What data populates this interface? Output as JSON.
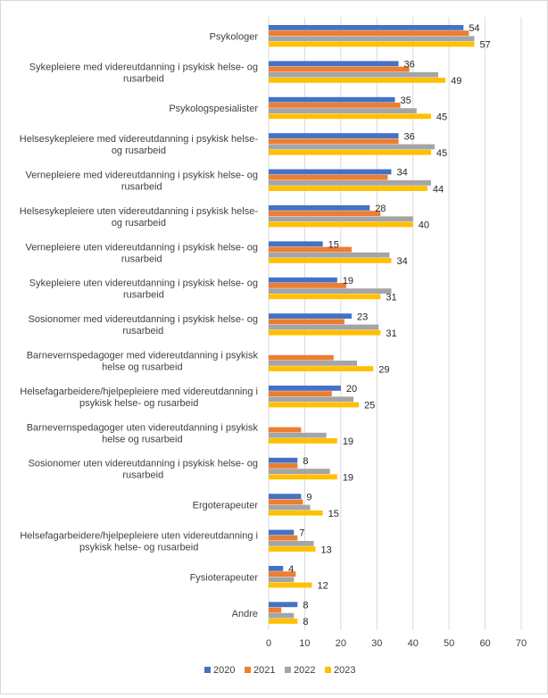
{
  "chart_data": {
    "type": "bar",
    "orientation": "horizontal",
    "title": "",
    "xlabel": "",
    "ylabel": "",
    "xlim": [
      0,
      70
    ],
    "x_ticks": [
      "0",
      "10",
      "20",
      "30",
      "40",
      "50",
      "60",
      "70"
    ],
    "grid": "vertical",
    "legend_position": "bottom",
    "categories": [
      [
        "Psykologer"
      ],
      [
        "Sykepleiere med videreutdanning i psykisk helse- og",
        "rusarbeid"
      ],
      [
        "Psykologspesialister"
      ],
      [
        "Helsesykepleiere med videreutdanning i psykisk helse-",
        "og rusarbeid"
      ],
      [
        "Vernepleiere med videreutdanning i psykisk helse- og",
        "rusarbeid"
      ],
      [
        "Helsesykepleiere uten videreutdanning i psykisk helse-",
        "og rusarbeid"
      ],
      [
        "Vernepleiere uten videreutdanning i psykisk helse- og",
        "rusarbeid"
      ],
      [
        "Sykepleiere uten videreutdanning i psykisk helse- og",
        "rusarbeid"
      ],
      [
        "Sosionomer med videreutdanning i psykisk helse- og",
        "rusarbeid"
      ],
      [
        "Barnevernspedagoger med videreutdanning i psykisk",
        "helse og rusarbeid"
      ],
      [
        "Helsefagarbeidere/hjelpepleiere med videreutdanning i",
        "psykisk helse- og rusarbeid"
      ],
      [
        "Barnevernspedagoger uten videreutdanning i psykisk",
        "helse og rusarbeid"
      ],
      [
        "Sosionomer uten videreutdanning i psykisk helse- og",
        "rusarbeid"
      ],
      [
        "Ergoterapeuter"
      ],
      [
        "Helsefagarbeidere/hjelpepleiere uten videreutdanning i",
        "psykisk helse- og rusarbeid"
      ],
      [
        "Fysioterapeuter"
      ],
      [
        "Andre"
      ]
    ],
    "series": [
      {
        "name": "2020",
        "color": "#4472C4",
        "values": [
          54,
          36,
          35,
          36,
          34,
          28,
          15,
          19,
          23,
          null,
          20,
          null,
          8,
          9,
          7,
          4,
          8
        ],
        "labels": [
          "54",
          "36",
          "35",
          "36",
          "34",
          "28",
          "15",
          "19",
          "23",
          "",
          "20",
          "",
          "8",
          "9",
          "7",
          "4",
          "8"
        ]
      },
      {
        "name": "2021",
        "color": "#ED7D31",
        "values": [
          55.5,
          39,
          36.5,
          36,
          33,
          31,
          23,
          21.5,
          21,
          18,
          17.5,
          9,
          8,
          9.5,
          8,
          7.5,
          3.5
        ],
        "labels": []
      },
      {
        "name": "2022",
        "color": "#A5A5A5",
        "values": [
          57,
          47,
          41,
          46,
          45,
          40,
          33.5,
          34,
          30.5,
          24.5,
          23.5,
          16,
          17,
          11.5,
          12.5,
          7,
          7
        ],
        "labels": []
      },
      {
        "name": "2023",
        "color": "#FFC000",
        "values": [
          57,
          49,
          45,
          45,
          44,
          40,
          34,
          31,
          31,
          29,
          25,
          19,
          19,
          15,
          13,
          12,
          8
        ],
        "labels": [
          "57",
          "49",
          "45",
          "45",
          "44",
          "40",
          "34",
          "31",
          "31",
          "29",
          "25",
          "19",
          "19",
          "15",
          "13",
          "12",
          "8"
        ]
      }
    ]
  }
}
